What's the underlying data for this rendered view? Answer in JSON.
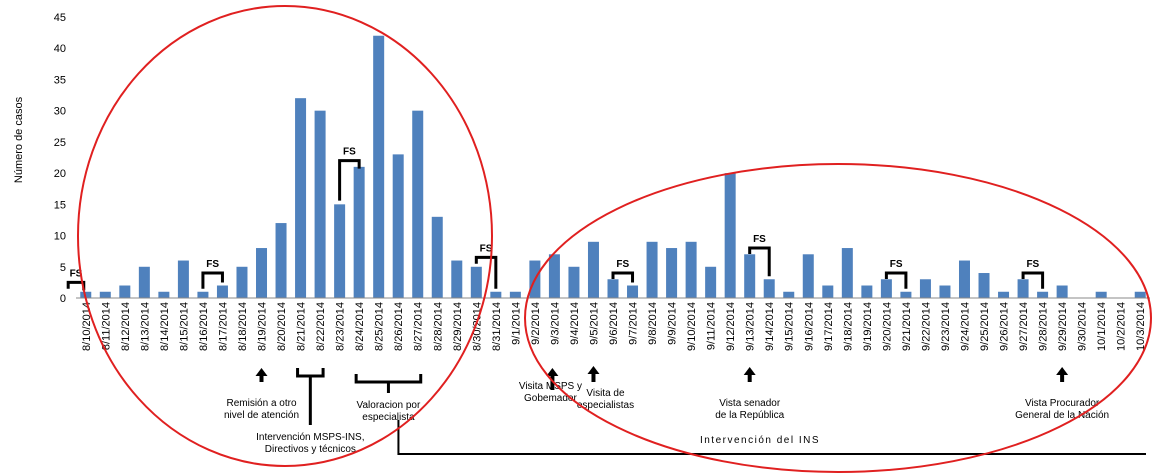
{
  "chart_data": {
    "type": "bar",
    "ylabel": "Número de casos",
    "ylim": [
      0,
      45
    ],
    "yticks": [
      0,
      5,
      10,
      15,
      20,
      25,
      30,
      35,
      40,
      45
    ],
    "bar_color": "#4f81bd",
    "categories": [
      "8/10/2014",
      "8/11/2014",
      "8/12/2014",
      "8/13/2014",
      "8/14/2014",
      "8/15/2014",
      "8/16/2014",
      "8/17/2014",
      "8/18/2014",
      "8/19/2014",
      "8/20/2014",
      "8/21/2014",
      "8/22/2014",
      "8/23/2014",
      "8/24/2014",
      "8/25/2014",
      "8/26/2014",
      "8/27/2014",
      "8/28/2014",
      "8/29/2014",
      "8/30/2014",
      "8/31/2014",
      "9/1/2014",
      "9/2/2014",
      "9/3/2014",
      "9/4/2014",
      "9/5/2014",
      "9/6/2014",
      "9/7/2014",
      "9/8/2014",
      "9/9/2014",
      "9/10/2014",
      "9/11/2014",
      "9/12/2014",
      "9/13/2014",
      "9/14/2014",
      "9/15/2014",
      "9/16/2014",
      "9/17/2014",
      "9/18/2014",
      "9/19/2014",
      "9/20/2014",
      "9/21/2014",
      "9/22/2014",
      "9/23/2014",
      "9/24/2014",
      "9/25/2014",
      "9/26/2014",
      "9/27/2014",
      "9/28/2014",
      "9/29/2014",
      "9/30/2014",
      "10/1/2014",
      "10/2/2014",
      "10/3/2014"
    ],
    "values": [
      1,
      1,
      2,
      5,
      1,
      6,
      1,
      2,
      5,
      8,
      12,
      32,
      30,
      15,
      21,
      42,
      23,
      30,
      13,
      6,
      5,
      1,
      1,
      6,
      7,
      5,
      9,
      3,
      2,
      9,
      8,
      9,
      5,
      20,
      7,
      3,
      1,
      7,
      2,
      8,
      2,
      3,
      1,
      3,
      2,
      6,
      4,
      1,
      3,
      1,
      2,
      0,
      1,
      0,
      1
    ],
    "fs_label": "FS",
    "fs_brackets": [
      {
        "from": "8/10/2014",
        "to": "8/10/2014",
        "height": 2.5
      },
      {
        "from": "8/16/2014",
        "to": "8/17/2014",
        "height": 4
      },
      {
        "from": "8/23/2014",
        "to": "8/24/2014",
        "height": 22
      },
      {
        "from": "8/30/2014",
        "to": "8/31/2014",
        "height": 6.5
      },
      {
        "from": "9/6/2014",
        "to": "9/7/2014",
        "height": 4
      },
      {
        "from": "9/13/2014",
        "to": "9/14/2014",
        "height": 8
      },
      {
        "from": "9/20/2014",
        "to": "9/21/2014",
        "height": 4
      },
      {
        "from": "9/27/2014",
        "to": "9/28/2014",
        "height": 4
      }
    ],
    "annotations": [
      {
        "lines": [
          "Remisión a otro",
          "nivel de atención"
        ]
      },
      {
        "lines": [
          "Intervención MSPS-INS,",
          "Directivos y técnicos"
        ]
      },
      {
        "lines": [
          "Valoracion por",
          "especialista"
        ]
      },
      {
        "lines": [
          "Visita MSPS y",
          "Gobemador"
        ]
      },
      {
        "lines": [
          "Visita de",
          "especialistas"
        ]
      },
      {
        "lines": [
          "Vista senador",
          "de la República"
        ]
      },
      {
        "lines": [
          "Vista Procurador",
          "General de la Nación"
        ]
      }
    ],
    "intervention_label": "Intervención del INS",
    "ellipse_color": "#e02020"
  }
}
